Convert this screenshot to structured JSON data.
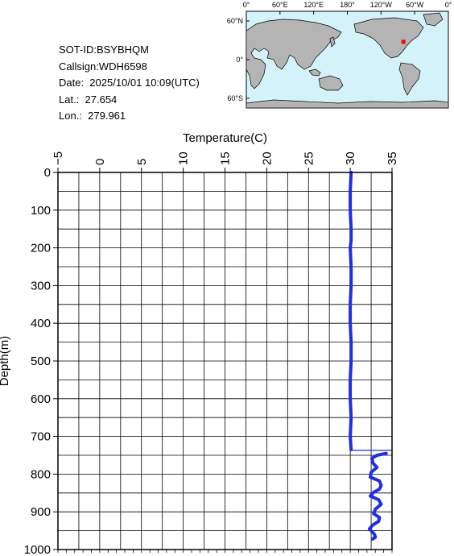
{
  "info": {
    "sot_id": "SOT-ID:BSYBHQM",
    "callsign": "Callsign:WDH6598",
    "date": "Date:  2025/10/01 10:09(UTC)",
    "lat": "Lat.:  27.654",
    "lon": "Lon.:  279.961"
  },
  "map": {
    "top_labels": [
      "0°",
      "60°E",
      "120°E",
      "180°",
      "120°W",
      "60°W",
      "0°"
    ],
    "side_labels": [
      "60°N",
      "0°",
      "60°S"
    ],
    "ocean_color": "#d4f2fa",
    "land_color": "#b4b4b4",
    "marker_color": "#ff0000",
    "marker_lon": 279.961,
    "marker_lat": 27.654
  },
  "chart_data": {
    "type": "line",
    "xlabel": "Temperature(C)",
    "ylabel": "Depth(m)",
    "xlim": [
      -5,
      35
    ],
    "ylim": [
      1000,
      0
    ],
    "x_ticks": [
      -5,
      0,
      5,
      10,
      15,
      20,
      25,
      30,
      35
    ],
    "y_ticks": [
      0,
      100,
      200,
      300,
      400,
      500,
      600,
      700,
      800,
      900,
      1000
    ],
    "grid": true,
    "line_color": "#1f2fe0",
    "series": [
      {
        "x": [
          30.1,
          30.0,
          30.0,
          30.1,
          30.1,
          30.0,
          30.1,
          30.1,
          30.0,
          30.0,
          30.1,
          30.1,
          30.0,
          30.0,
          30.1,
          30.0,
          30.1
        ],
        "y": [
          0,
          50,
          100,
          150,
          180,
          200,
          250,
          300,
          350,
          400,
          450,
          500,
          550,
          600,
          650,
          700,
          735
        ]
      },
      {
        "x": [
          30.0,
          35.0
        ],
        "y": [
          737,
          737
        ]
      },
      {
        "x": [
          34.3,
          33.2,
          32.6,
          32.7,
          33.2,
          32.5,
          32.4,
          33.5,
          33.7,
          33.5,
          32.8,
          32.4,
          33.4,
          33.7,
          33.0,
          32.8,
          33.5,
          33.4,
          32.7,
          32.3,
          32.6,
          32.9,
          33.0,
          32.7
        ],
        "y": [
          745,
          750,
          758,
          770,
          782,
          795,
          808,
          818,
          830,
          840,
          848,
          858,
          868,
          880,
          893,
          905,
          915,
          925,
          935,
          945,
          952,
          960,
          967,
          972
        ]
      }
    ]
  }
}
